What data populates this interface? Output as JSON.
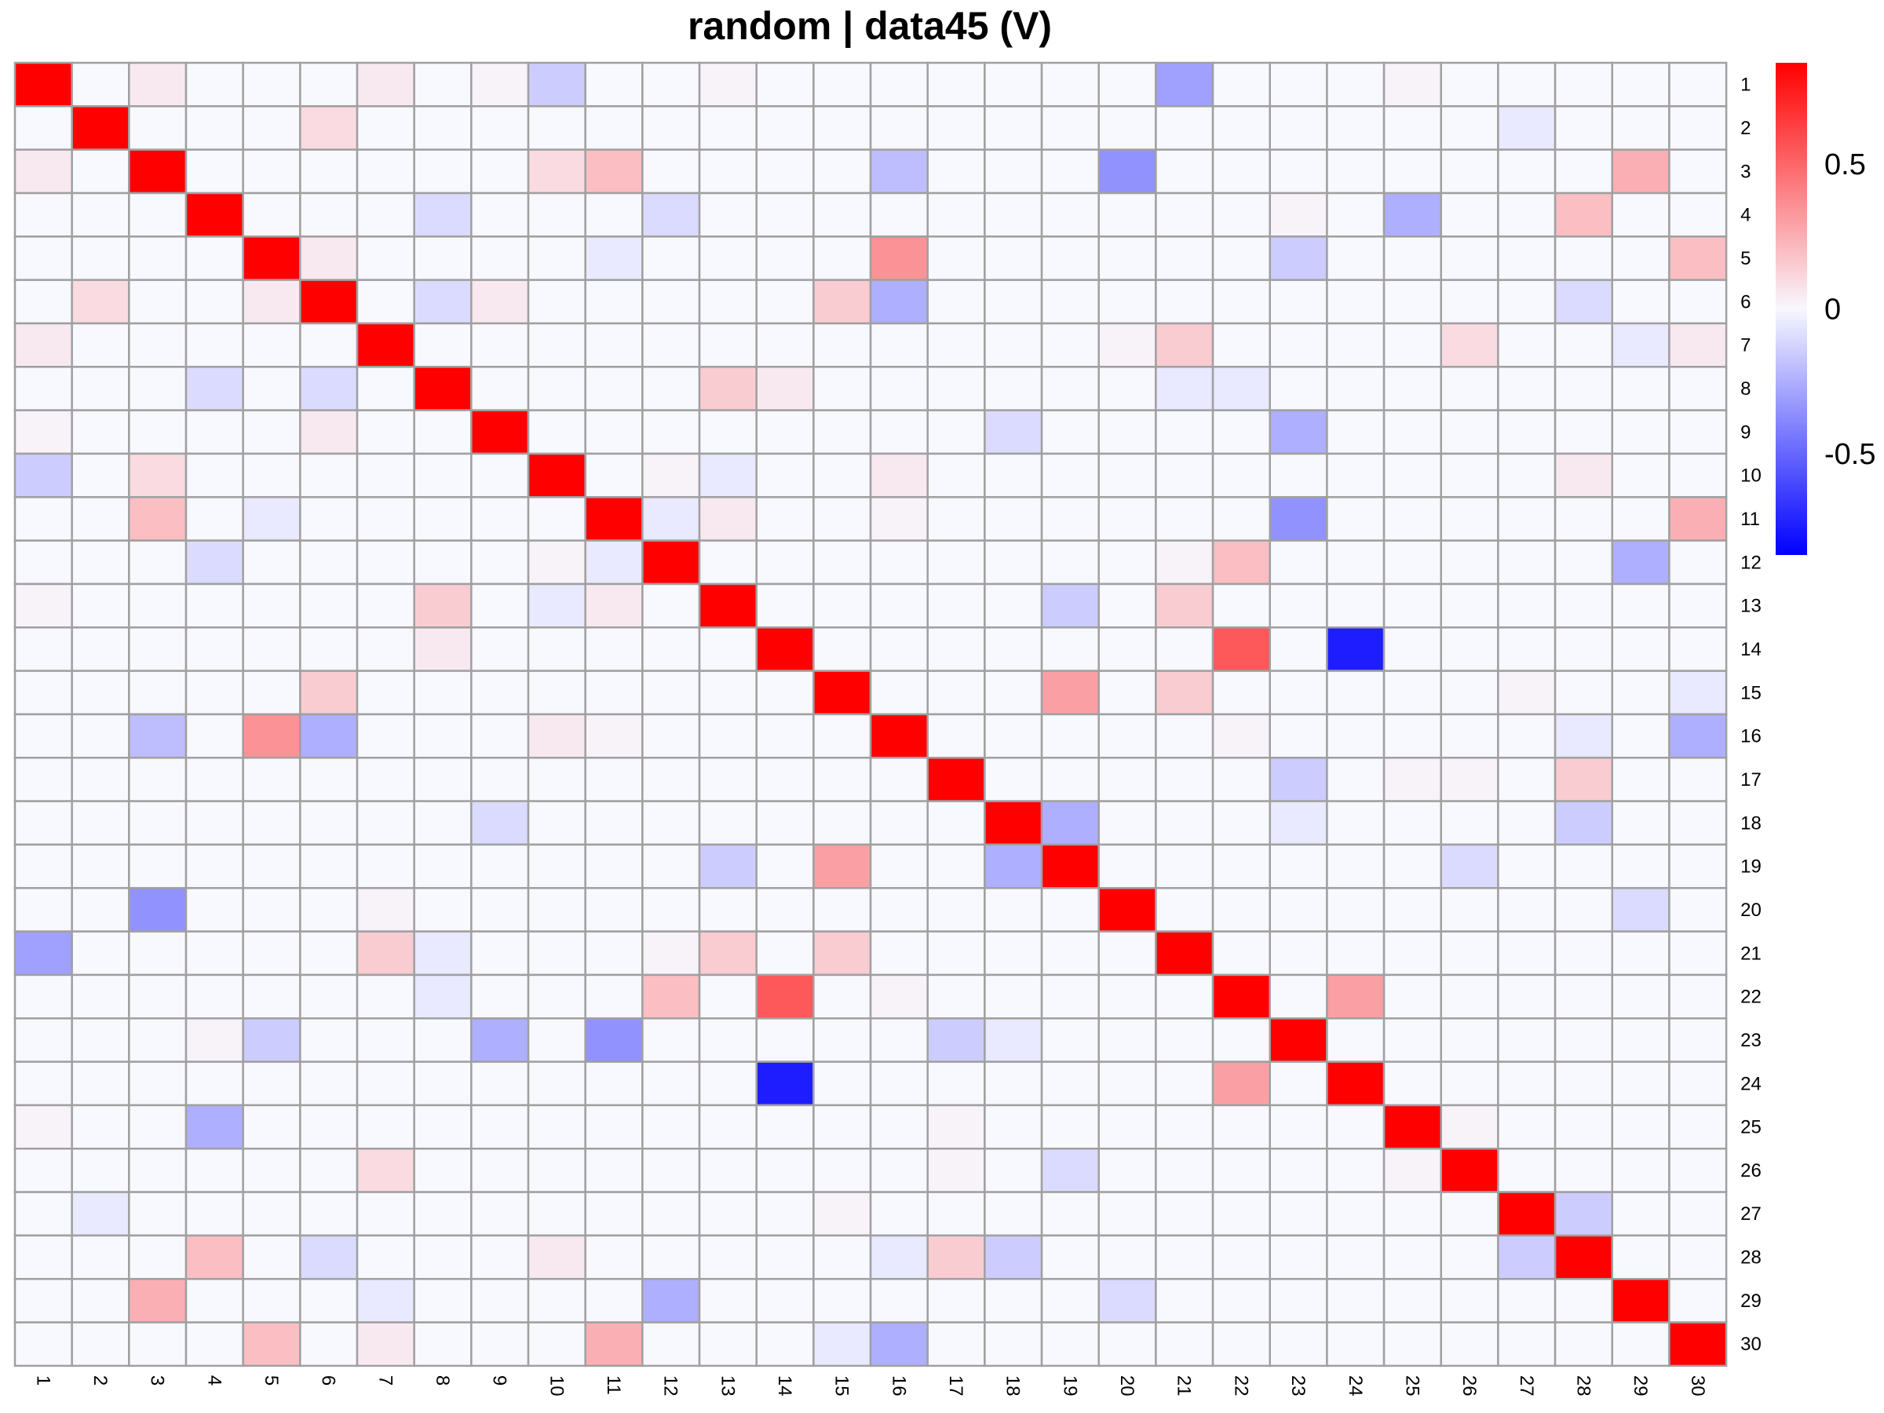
{
  "chart_data": {
    "type": "heatmap",
    "title": "random | data45 (V)",
    "row_labels": [
      "1",
      "2",
      "3",
      "4",
      "5",
      "6",
      "7",
      "8",
      "9",
      "10",
      "11",
      "12",
      "13",
      "14",
      "15",
      "16",
      "17",
      "18",
      "19",
      "20",
      "21",
      "22",
      "23",
      "24",
      "25",
      "26",
      "27",
      "28",
      "29",
      "30"
    ],
    "col_labels": [
      "1",
      "2",
      "3",
      "4",
      "5",
      "6",
      "7",
      "8",
      "9",
      "10",
      "11",
      "12",
      "13",
      "14",
      "15",
      "16",
      "17",
      "18",
      "19",
      "20",
      "21",
      "22",
      "23",
      "24",
      "25",
      "26",
      "27",
      "28",
      "29",
      "30"
    ],
    "color_scale": {
      "min": -0.85,
      "max": 0.85,
      "low_color": "#0000ff",
      "mid_color": "#f8f8ff",
      "high_color": "#ff0000",
      "ticks": [
        {
          "value": 0.5,
          "label": "0.5"
        },
        {
          "value": 0,
          "label": "0"
        },
        {
          "value": -0.5,
          "label": "-0.5"
        }
      ]
    },
    "diagonal": 1.0,
    "grid_color": "#a0a0a0",
    "entries": [
      [
        1,
        3,
        0.05
      ],
      [
        1,
        7,
        0.05
      ],
      [
        1,
        9,
        0.02
      ],
      [
        1,
        10,
        -0.15
      ],
      [
        1,
        13,
        0.02
      ],
      [
        1,
        21,
        -0.3
      ],
      [
        1,
        25,
        0.02
      ],
      [
        2,
        6,
        0.1
      ],
      [
        2,
        27,
        -0.05
      ],
      [
        3,
        10,
        0.1
      ],
      [
        3,
        11,
        0.2
      ],
      [
        3,
        16,
        -0.2
      ],
      [
        3,
        20,
        -0.35
      ],
      [
        3,
        29,
        0.25
      ],
      [
        4,
        8,
        -0.1
      ],
      [
        4,
        12,
        -0.1
      ],
      [
        4,
        23,
        0.02
      ],
      [
        4,
        25,
        -0.25
      ],
      [
        4,
        28,
        0.2
      ],
      [
        5,
        6,
        0.05
      ],
      [
        5,
        11,
        -0.05
      ],
      [
        5,
        16,
        0.35
      ],
      [
        5,
        23,
        -0.15
      ],
      [
        5,
        30,
        0.2
      ],
      [
        6,
        8,
        -0.1
      ],
      [
        6,
        9,
        0.05
      ],
      [
        6,
        15,
        0.15
      ],
      [
        6,
        16,
        -0.25
      ],
      [
        6,
        28,
        -0.1
      ],
      [
        7,
        20,
        0.02
      ],
      [
        7,
        21,
        0.15
      ],
      [
        7,
        26,
        0.1
      ],
      [
        7,
        29,
        -0.05
      ],
      [
        7,
        30,
        0.05
      ],
      [
        8,
        13,
        0.15
      ],
      [
        8,
        14,
        0.05
      ],
      [
        8,
        21,
        -0.05
      ],
      [
        8,
        22,
        -0.05
      ],
      [
        9,
        18,
        -0.1
      ],
      [
        9,
        23,
        -0.25
      ],
      [
        10,
        12,
        0.02
      ],
      [
        10,
        13,
        -0.05
      ],
      [
        10,
        16,
        0.05
      ],
      [
        10,
        28,
        0.05
      ],
      [
        11,
        12,
        -0.05
      ],
      [
        11,
        13,
        0.05
      ],
      [
        11,
        16,
        0.02
      ],
      [
        11,
        23,
        -0.35
      ],
      [
        11,
        30,
        0.25
      ],
      [
        12,
        21,
        0.02
      ],
      [
        12,
        22,
        0.2
      ],
      [
        12,
        29,
        -0.25
      ],
      [
        13,
        19,
        -0.15
      ],
      [
        13,
        21,
        0.15
      ],
      [
        14,
        22,
        0.55
      ],
      [
        14,
        24,
        -0.75
      ],
      [
        15,
        19,
        0.3
      ],
      [
        15,
        21,
        0.15
      ],
      [
        15,
        27,
        0.02
      ],
      [
        15,
        30,
        -0.05
      ],
      [
        16,
        22,
        0.02
      ],
      [
        16,
        28,
        -0.05
      ],
      [
        16,
        30,
        -0.25
      ],
      [
        17,
        23,
        -0.15
      ],
      [
        17,
        25,
        0.02
      ],
      [
        17,
        26,
        0.02
      ],
      [
        17,
        28,
        0.15
      ],
      [
        18,
        19,
        -0.25
      ],
      [
        18,
        23,
        -0.05
      ],
      [
        18,
        28,
        -0.15
      ],
      [
        19,
        26,
        -0.1
      ],
      [
        20,
        29,
        -0.1
      ],
      [
        22,
        24,
        0.3
      ],
      [
        25,
        26,
        0.02
      ],
      [
        27,
        28,
        -0.15
      ]
    ]
  }
}
